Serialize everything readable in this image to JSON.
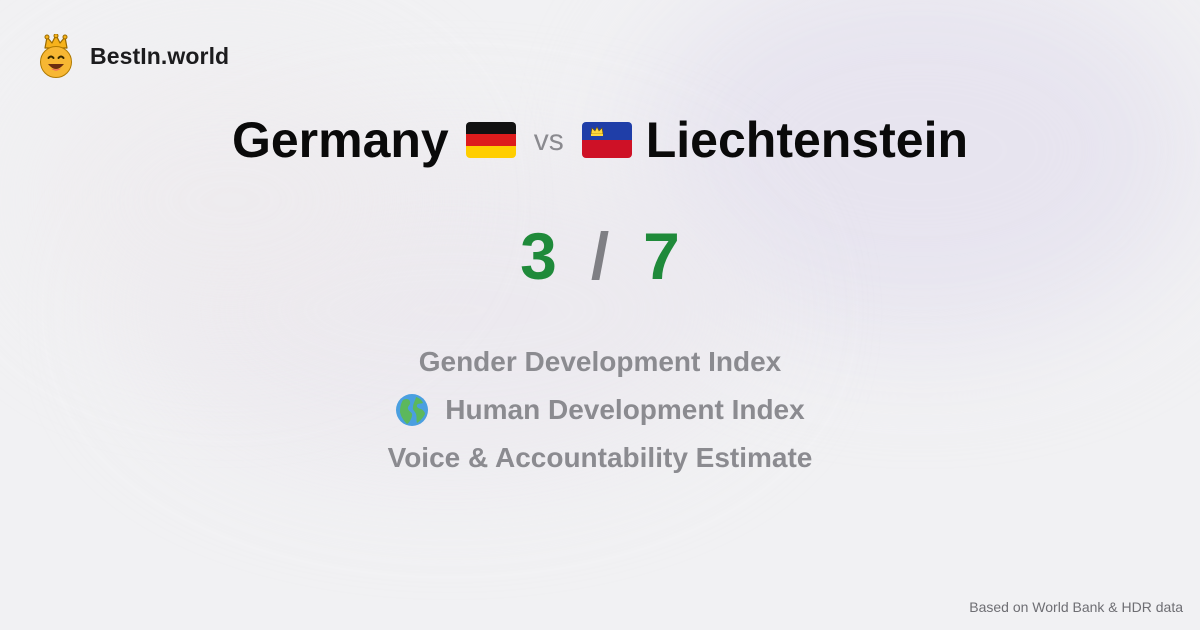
{
  "brand": {
    "name": "BestIn.world",
    "logo_icon": "crown-smiley-icon"
  },
  "comparison": {
    "left": {
      "name": "Germany",
      "flag_icon": "germany-flag-icon"
    },
    "separator": "vs",
    "right": {
      "name": "Liechtenstein",
      "flag_icon": "liechtenstein-flag-icon"
    }
  },
  "score": {
    "left": "3",
    "separator": "/",
    "right": "7"
  },
  "metrics": [
    {
      "label": "Gender Development Index",
      "icon": ""
    },
    {
      "label": "Human Development Index",
      "icon": "globe-icon"
    },
    {
      "label": "Voice & Accountability Estimate",
      "icon": ""
    }
  ],
  "footer": {
    "source": "Based on World Bank & HDR data"
  },
  "colors": {
    "background": "#f1f1f3",
    "score_green": "#1f8a3a",
    "muted_text": "#8b8b90",
    "title_text": "#0a0a0a"
  }
}
